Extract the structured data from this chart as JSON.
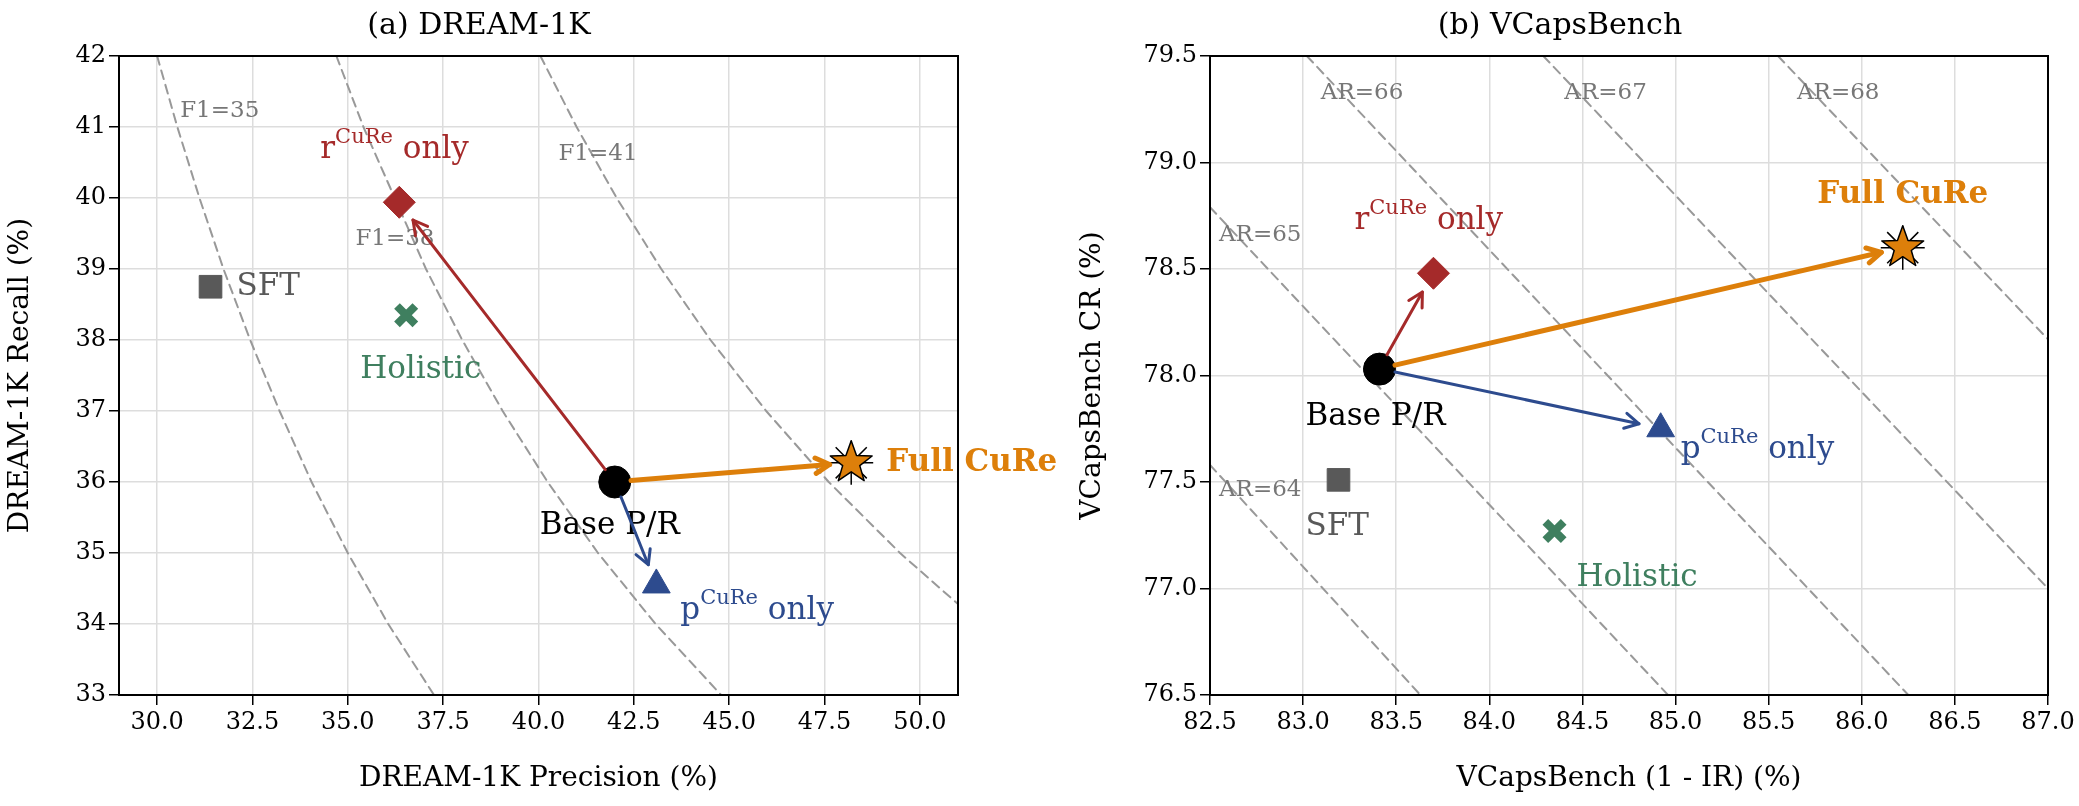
{
  "chart_data": [
    {
      "type": "scatter",
      "title": "(a) DREAM-1K",
      "xlabel": "DREAM-1K Precision (%)",
      "ylabel": "DREAM-1K Recall (%)",
      "xlim": [
        29,
        51
      ],
      "ylim": [
        33,
        42
      ],
      "xticks": [
        {
          "value": 30,
          "label": "30.0"
        },
        {
          "value": 32.5,
          "label": "32.5"
        },
        {
          "value": 35,
          "label": "35.0"
        },
        {
          "value": 37.5,
          "label": "37.5"
        },
        {
          "value": 40,
          "label": "40.0"
        },
        {
          "value": 42.5,
          "label": "42.5"
        },
        {
          "value": 45,
          "label": "45.0"
        },
        {
          "value": 47.5,
          "label": "47.5"
        },
        {
          "value": 50,
          "label": "50.0"
        }
      ],
      "yticks": [
        33,
        34,
        35,
        36,
        37,
        38,
        39,
        40,
        41,
        42
      ],
      "grid": true,
      "series": [
        {
          "type": "line",
          "name": "F1=35",
          "color": "#999999",
          "line_style": "dashed",
          "marker": "none",
          "x": [
            30.0,
            30.53,
            31.11,
            31.74,
            32.44,
            33.21,
            34.05,
            35.0,
            36.06,
            37.26
          ],
          "values": [
            42,
            41,
            40,
            39,
            38,
            37,
            36,
            35,
            34,
            33
          ]
        },
        {
          "type": "line",
          "name": "F1=38",
          "color": "#999999",
          "line_style": "dashed",
          "marker": "none",
          "x": [
            34.7,
            35.41,
            36.19,
            37.05,
            38.0,
            39.06,
            40.24,
            41.56,
            43.07,
            44.79
          ],
          "values": [
            42,
            41,
            null,
            39,
            38,
            37,
            36,
            35,
            34,
            33
          ]
        },
        {
          "type": "line",
          "name": "F1=41",
          "color": "#999999",
          "line_style": "dashed",
          "marker": "none",
          "x": [
            40.05,
            41.0,
            42.05,
            43.22,
            44.51,
            45.97,
            47.61,
            49.48,
            51.0
          ],
          "values": [
            42,
            41,
            40,
            39,
            38,
            37,
            36,
            35,
            34.28
          ]
        },
        {
          "name": "SFT",
          "color": "#595959",
          "marker": "square",
          "x": [
            31.4
          ],
          "values": [
            38.75
          ]
        },
        {
          "name": "Holistic",
          "color": "#3f7f5f",
          "marker": "cross",
          "x": [
            36.53
          ],
          "values": [
            38.35
          ]
        },
        {
          "name": "r$^{CuRe}$ only",
          "color": "#a52a2a",
          "marker": "diamond",
          "x": [
            36.35
          ],
          "values": [
            39.94
          ]
        },
        {
          "name": "Full CuRe",
          "color": "#dd7f0a",
          "marker": "star",
          "x": [
            48.2
          ],
          "values": [
            36.27
          ]
        },
        {
          "name": "Base P/R",
          "color": "#000000",
          "marker": "circle",
          "x": [
            42.0
          ],
          "values": [
            36.0
          ]
        },
        {
          "name": "p$^{CuRe}$ only",
          "color": "#2d4b8e",
          "marker": "triangle",
          "x": [
            43.09
          ],
          "values": [
            34.55
          ]
        }
      ]
    },
    {
      "type": "scatter",
      "title": "(b) VCapsBench",
      "xlabel": "VCapsBench (1 - IR) (%)",
      "ylabel": "VCapsBench CR (%)",
      "xlim": [
        82.5,
        87
      ],
      "ylim": [
        76.5,
        79.5
      ],
      "xticks": [
        {
          "value": 82.5,
          "label": "82.5"
        },
        {
          "value": 83,
          "label": "83.0"
        },
        {
          "value": 83.5,
          "label": "83.5"
        },
        {
          "value": 84,
          "label": "84.0"
        },
        {
          "value": 84.5,
          "label": "84.5"
        },
        {
          "value": 85,
          "label": "85.0"
        },
        {
          "value": 85.5,
          "label": "85.5"
        },
        {
          "value": 86,
          "label": "86.0"
        },
        {
          "value": 86.5,
          "label": "86.5"
        },
        {
          "value": 87,
          "label": "87.0"
        }
      ],
      "yticks": [
        76.5,
        {
          "value": 77,
          "label": "77.0"
        },
        77.5,
        {
          "value": 78,
          "label": "78.0"
        },
        78.5,
        {
          "value": 79,
          "label": "79.0"
        },
        79.5
      ],
      "grid": true,
      "series": [
        {
          "type": "line",
          "name": "AR=64",
          "color": "#999999",
          "line_style": "dashed",
          "marker": "none",
          "x": [
            82.5,
            83.63
          ],
          "values": [
            77.58,
            76.5
          ]
        },
        {
          "type": "line",
          "name": "AR=65",
          "color": "#999999",
          "line_style": "dashed",
          "marker": "none",
          "x": [
            82.5,
            84.96
          ],
          "values": [
            78.79,
            76.5
          ]
        },
        {
          "type": "line",
          "name": "AR=66",
          "color": "#999999",
          "line_style": "dashed",
          "marker": "none",
          "x": [
            83.02,
            86.25
          ],
          "values": [
            79.5,
            76.5
          ]
        },
        {
          "type": "line",
          "name": "AR=67",
          "color": "#999999",
          "line_style": "dashed",
          "marker": "none",
          "x": [
            84.29,
            87.0
          ],
          "values": [
            79.5,
            77.0
          ]
        },
        {
          "type": "line",
          "name": "AR=68",
          "color": "#999999",
          "line_style": "dashed",
          "marker": "none",
          "x": [
            85.55,
            87.0
          ],
          "values": [
            79.5,
            78.17
          ]
        },
        {
          "name": "SFT",
          "color": "#595959",
          "marker": "square",
          "x": [
            83.19
          ],
          "values": [
            77.51
          ]
        },
        {
          "name": "Holistic",
          "color": "#3f7f5f",
          "marker": "cross",
          "x": [
            84.35
          ],
          "values": [
            77.27
          ]
        },
        {
          "name": "r$^{CuRe}$ only",
          "color": "#a52a2a",
          "marker": "diamond",
          "x": [
            83.7
          ],
          "values": [
            78.48
          ]
        },
        {
          "name": "Full CuRe",
          "color": "#dd7f0a",
          "marker": "star",
          "x": [
            86.22
          ],
          "values": [
            78.6
          ]
        },
        {
          "name": "Base P/R",
          "color": "#000000",
          "marker": "circle",
          "x": [
            83.41
          ],
          "values": [
            78.03
          ]
        },
        {
          "name": "p$^{CuRe}$ only",
          "color": "#2d4b8e",
          "marker": "triangle",
          "x": [
            84.92
          ],
          "values": [
            77.75
          ]
        }
      ]
    }
  ]
}
